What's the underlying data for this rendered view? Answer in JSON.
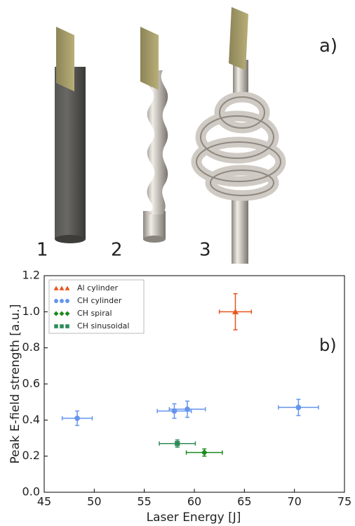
{
  "figure": {
    "panel_a_label": "a)",
    "object_labels": [
      "1",
      "2",
      "3"
    ]
  },
  "chart_data": {
    "type": "scatter",
    "annotation": "b)",
    "xlabel": "Laser Energy [J]",
    "ylabel": "Peak E-field strength [a.u.]",
    "xlim": [
      45,
      75
    ],
    "xticks": [
      45,
      50,
      55,
      60,
      65,
      70,
      75
    ],
    "ylim": [
      0,
      1.2
    ],
    "yticks": [
      {
        "value": 0,
        "label": "0.0"
      },
      0.2,
      0.4,
      0.6,
      0.8,
      {
        "value": 1,
        "label": "1.0"
      },
      1.2
    ],
    "legend": "upper left",
    "series": [
      {
        "name": "Al cylinder",
        "color": "#e8541c",
        "marker": "triangle",
        "x": [
          64.1
        ],
        "values": [
          1.0
        ],
        "xerr": [
          1.6
        ],
        "yerr": [
          0.1
        ]
      },
      {
        "name": "CH cylinder",
        "color": "#6495ed",
        "marker": "circle",
        "x": [
          48.3,
          58.0,
          59.3,
          70.4
        ],
        "values": [
          0.41,
          0.45,
          0.46,
          0.47
        ],
        "xerr": [
          1.5,
          1.7,
          1.8,
          2.0
        ],
        "yerr": [
          0.04,
          0.04,
          0.045,
          0.045
        ]
      },
      {
        "name": "CH spiral",
        "color": "#1e8a1e",
        "marker": "diamond",
        "x": [
          61.0
        ],
        "values": [
          0.22
        ],
        "xerr": [
          1.8
        ],
        "yerr": [
          0.02
        ]
      },
      {
        "name": "CH sinusoidal",
        "color": "#2e8b57",
        "marker": "square",
        "x": [
          58.3
        ],
        "values": [
          0.27
        ],
        "xerr": [
          1.8
        ],
        "yerr": [
          0.02
        ]
      }
    ]
  }
}
